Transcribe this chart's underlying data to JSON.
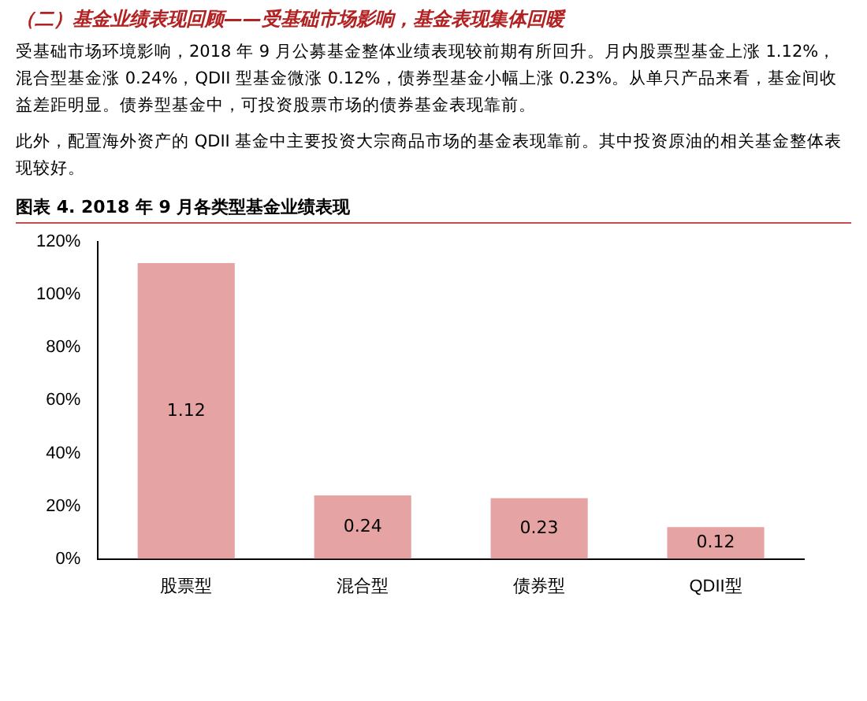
{
  "chart_data": {
    "type": "bar",
    "subtitle": "（二）基金业绩表现回顾——受基础市场影响，基金表现集体回暖",
    "annotations": [
      "受基础市场环境影响，2018 年 9 月公募基金整体业绩表现较前期有所回升。月内股票型基金上涨 1.12%，混合型基金涨 0.24%，QDII 型基金微涨 0.12%，债券型基金小幅上涨 0.23%。从单只产品来看，基金间收益差距明显。债券型基金中，可投资股票市场的债券基金表现靠前。",
      "此外，配置海外资产的 QDII 基金中主要投资大宗商品市场的基金表现靠前。其中投资原油的相关基金整体表现较好。"
    ],
    "title": "图表 4. 2018 年 9 月各类型基金业绩表现",
    "categories": [
      "股票型",
      "混合型",
      "债券型",
      "QDII型"
    ],
    "values": [
      1.12,
      0.24,
      0.23,
      0.12
    ],
    "value_labels": [
      "1.12",
      "0.24",
      "0.23",
      "0.12"
    ],
    "color": "#e6a3a3",
    "ylim": [
      0,
      1.2
    ],
    "yticks": [
      {
        "value": 0,
        "label": "0%"
      },
      {
        "value": 0.2,
        "label": "20%"
      },
      {
        "value": 0.4,
        "label": "40%"
      },
      {
        "value": 0.6,
        "label": "60%"
      },
      {
        "value": 0.8,
        "label": "80%"
      },
      {
        "value": 1,
        "label": "100%"
      },
      {
        "value": 1.2,
        "label": "120%"
      }
    ]
  }
}
